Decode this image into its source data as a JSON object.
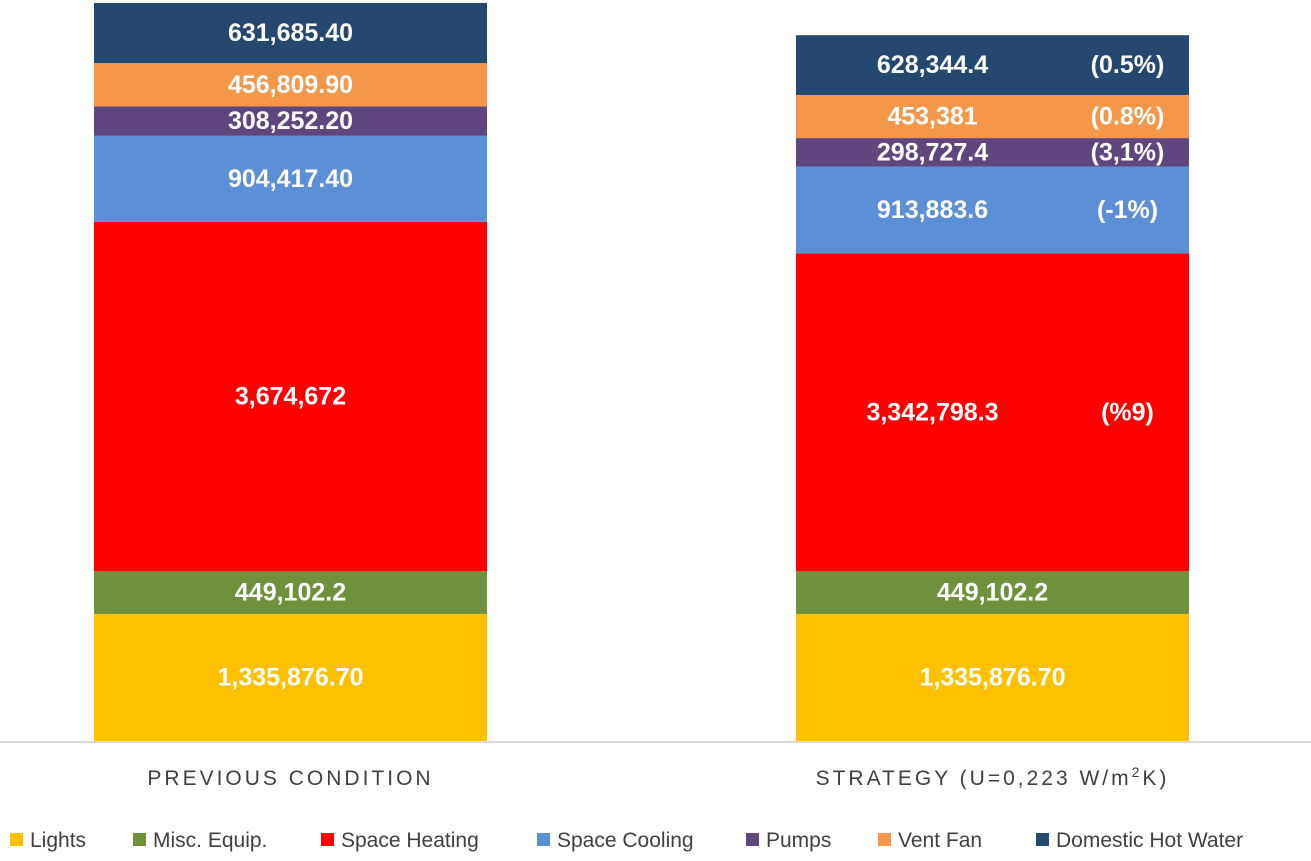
{
  "chart_data": {
    "type": "bar",
    "stacked": true,
    "categories": [
      {
        "label": "PREVIOUS CONDITION",
        "sup": "",
        "label_end": ""
      },
      {
        "label": "STRATEGY (U=0,223 W/m",
        "sup": "2",
        "label_end": "K)"
      }
    ],
    "series": [
      {
        "name": "Lights",
        "color": "#ffc000",
        "values": [
          1335876.7,
          1335876.7
        ],
        "labels": [
          "1,335,876.70",
          "1,335,876.70"
        ],
        "notes": [
          "",
          ""
        ]
      },
      {
        "name": "Misc. Equip.",
        "color": "#70913b",
        "values": [
          449102.2,
          449102.2
        ],
        "labels": [
          "449,102.2",
          "449,102.2"
        ],
        "notes": [
          "",
          ""
        ]
      },
      {
        "name": "Space Heating",
        "color": "#ff0000",
        "values": [
          3674672,
          3342798.3
        ],
        "labels": [
          "3,674,672",
          "3,342,798.3"
        ],
        "notes": [
          "",
          "(%9)"
        ]
      },
      {
        "name": "Space Cooling",
        "color": "#5b8fd6",
        "values": [
          904417.4,
          913883.6
        ],
        "labels": [
          "904,417.40",
          "913,883.6"
        ],
        "notes": [
          "",
          "(-1%)"
        ]
      },
      {
        "name": "Pumps",
        "color": "#5f467f",
        "values": [
          308252.2,
          298727.4
        ],
        "labels": [
          "308,252.20",
          "298,727.4"
        ],
        "notes": [
          "",
          "(3,1%)"
        ]
      },
      {
        "name": "Vent Fan",
        "color": "#f4974b",
        "values": [
          456809.9,
          453381
        ],
        "labels": [
          "456,809.90",
          "453,381"
        ],
        "notes": [
          "",
          "(0.8%)"
        ]
      },
      {
        "name": "Domestic Hot Water",
        "color": "#254871",
        "values": [
          631685.4,
          628344.4
        ],
        "labels": [
          "631,685.40",
          "628,344.4"
        ],
        "notes": [
          "",
          "(0.5%)"
        ]
      }
    ],
    "legend_position": "bottom",
    "grid": false
  }
}
